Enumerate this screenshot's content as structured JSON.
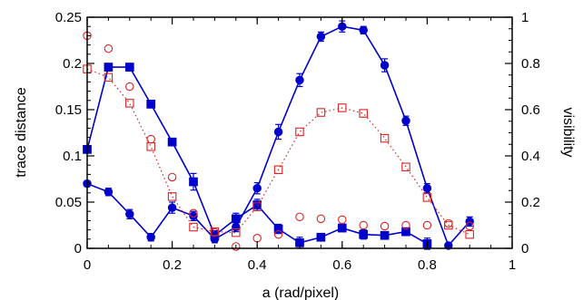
{
  "chart_data": {
    "type": "scatter",
    "title": "",
    "xlabel": "a (rad/pixel)",
    "ylabel": "trace distance",
    "y2label": "visibility",
    "xlim": [
      0,
      1
    ],
    "ylim": [
      0,
      0.25
    ],
    "y2lim": [
      0,
      1
    ],
    "x_ticks": [
      "0",
      "0.2",
      "0.4",
      "0.6",
      "0.8",
      "1"
    ],
    "y_ticks": [
      "0",
      "0.05",
      "0.1",
      "0.15",
      "0.2",
      "0.25"
    ],
    "y2_ticks": [
      "0",
      "0.2",
      "0.4",
      "0.6",
      "0.8",
      "1"
    ],
    "grid": false,
    "colors": {
      "blue": "#0000cc",
      "red": "#dd2222"
    },
    "series": [
      {
        "axis": "left",
        "marker": "circle",
        "filled": true,
        "line": "solid",
        "color": "#0000cc",
        "x": [
          0,
          0.05,
          0.1,
          0.15,
          0.2,
          0.25,
          0.3,
          0.35,
          0.4,
          0.45,
          0.5,
          0.55,
          0.6,
          0.65,
          0.7,
          0.75,
          0.8,
          0.85,
          0.9
        ],
        "y": [
          0.07,
          0.061,
          0.037,
          0.012,
          0.044,
          0.035,
          0.01,
          0.023,
          0.065,
          0.126,
          0.182,
          0.229,
          0.24,
          0.236,
          0.198,
          0.138,
          0.065,
          0.003,
          0.029
        ],
        "err": [
          0.003,
          0.004,
          0.005,
          0.004,
          0.006,
          0.005,
          0.004,
          0.005,
          0.006,
          0.008,
          0.007,
          0.005,
          0.006,
          0.004,
          0.007,
          0.005,
          0.005,
          0.002,
          0.005
        ]
      },
      {
        "axis": "right",
        "marker": "square",
        "filled": true,
        "line": "solid",
        "color": "#0000cc",
        "x": [
          0,
          0.05,
          0.1,
          0.15,
          0.2,
          0.25,
          0.3,
          0.35,
          0.4,
          0.45,
          0.5,
          0.55,
          0.6,
          0.65,
          0.7,
          0.75,
          0.8
        ],
        "y": [
          0.428,
          0.784,
          0.784,
          0.624,
          0.46,
          0.288,
          0.056,
          0.128,
          0.188,
          0.084,
          0.024,
          0.048,
          0.088,
          0.06,
          0.056,
          0.072,
          0.02
        ],
        "err": [
          0.016,
          0.016,
          0.016,
          0.016,
          0.016,
          0.036,
          0.02,
          0.024,
          0.024,
          0.02,
          0.024,
          0.016,
          0.016,
          0.02,
          0.016,
          0.012,
          0.024
        ]
      },
      {
        "axis": "left",
        "marker": "circle",
        "filled": false,
        "line": "none",
        "color": "#dd2222",
        "x": [
          0,
          0.05,
          0.1,
          0.15,
          0.2,
          0.25,
          0.3,
          0.35,
          0.4,
          0.45,
          0.5,
          0.55,
          0.6,
          0.65,
          0.7,
          0.75,
          0.8,
          0.85,
          0.9
        ],
        "y": [
          0.23,
          0.216,
          0.175,
          0.118,
          0.077,
          0.038,
          0.017,
          0.002,
          0.011,
          0.015,
          0.034,
          0.032,
          0.031,
          0.025,
          0.024,
          0.025,
          0.025,
          0.027,
          0.024
        ]
      },
      {
        "axis": "right",
        "marker": "square",
        "filled": false,
        "line": "dotted",
        "color": "#dd2222",
        "x": [
          0,
          0.05,
          0.1,
          0.15,
          0.2,
          0.25,
          0.3,
          0.35,
          0.4,
          0.45,
          0.5,
          0.55,
          0.6,
          0.65,
          0.7,
          0.75,
          0.8,
          0.85,
          0.9
        ],
        "y": [
          0.776,
          0.74,
          0.628,
          0.44,
          0.224,
          0.092,
          0.072,
          0.068,
          0.18,
          0.34,
          0.504,
          0.588,
          0.608,
          0.584,
          0.476,
          0.352,
          0.22,
          0.1,
          0.06
        ]
      }
    ]
  }
}
